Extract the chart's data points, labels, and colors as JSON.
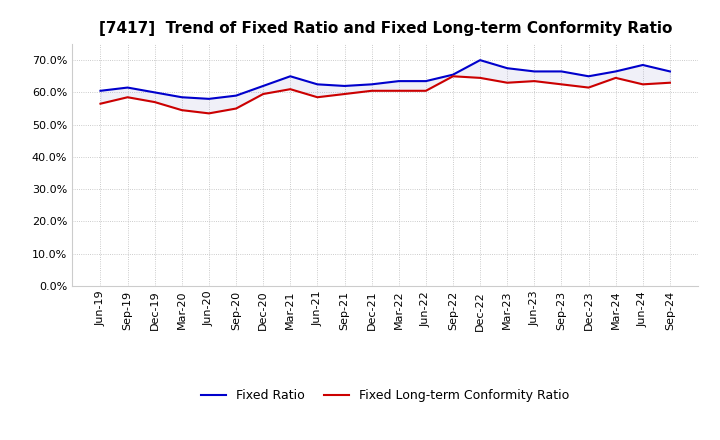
{
  "title": "[7417]  Trend of Fixed Ratio and Fixed Long-term Conformity Ratio",
  "x_labels": [
    "Jun-19",
    "Sep-19",
    "Dec-19",
    "Mar-20",
    "Jun-20",
    "Sep-20",
    "Dec-20",
    "Mar-21",
    "Jun-21",
    "Sep-21",
    "Dec-21",
    "Mar-22",
    "Jun-22",
    "Sep-22",
    "Dec-22",
    "Mar-23",
    "Jun-23",
    "Sep-23",
    "Dec-23",
    "Mar-24",
    "Jun-24",
    "Sep-24"
  ],
  "fixed_ratio": [
    60.5,
    61.5,
    60.0,
    58.5,
    58.0,
    59.0,
    62.0,
    65.0,
    62.5,
    62.0,
    62.5,
    63.5,
    63.5,
    65.5,
    70.0,
    67.5,
    66.5,
    66.5,
    65.0,
    66.5,
    68.5,
    66.5
  ],
  "fixed_lt_ratio": [
    56.5,
    58.5,
    57.0,
    54.5,
    53.5,
    55.0,
    59.5,
    61.0,
    58.5,
    59.5,
    60.5,
    60.5,
    60.5,
    65.0,
    64.5,
    63.0,
    63.5,
    62.5,
    61.5,
    64.5,
    62.5,
    63.0
  ],
  "ylim": [
    0,
    75
  ],
  "yticks": [
    0.0,
    10.0,
    20.0,
    30.0,
    40.0,
    50.0,
    60.0,
    70.0
  ],
  "fixed_ratio_color": "#0000cc",
  "fixed_lt_ratio_color": "#cc0000",
  "line_width": 1.5,
  "grid_color": "#bbbbbb",
  "background_color": "#ffffff",
  "plot_bg_color": "#ffffff",
  "legend_fixed": "Fixed Ratio",
  "legend_lt": "Fixed Long-term Conformity Ratio",
  "title_fontsize": 11,
  "tick_fontsize": 8,
  "legend_fontsize": 9
}
